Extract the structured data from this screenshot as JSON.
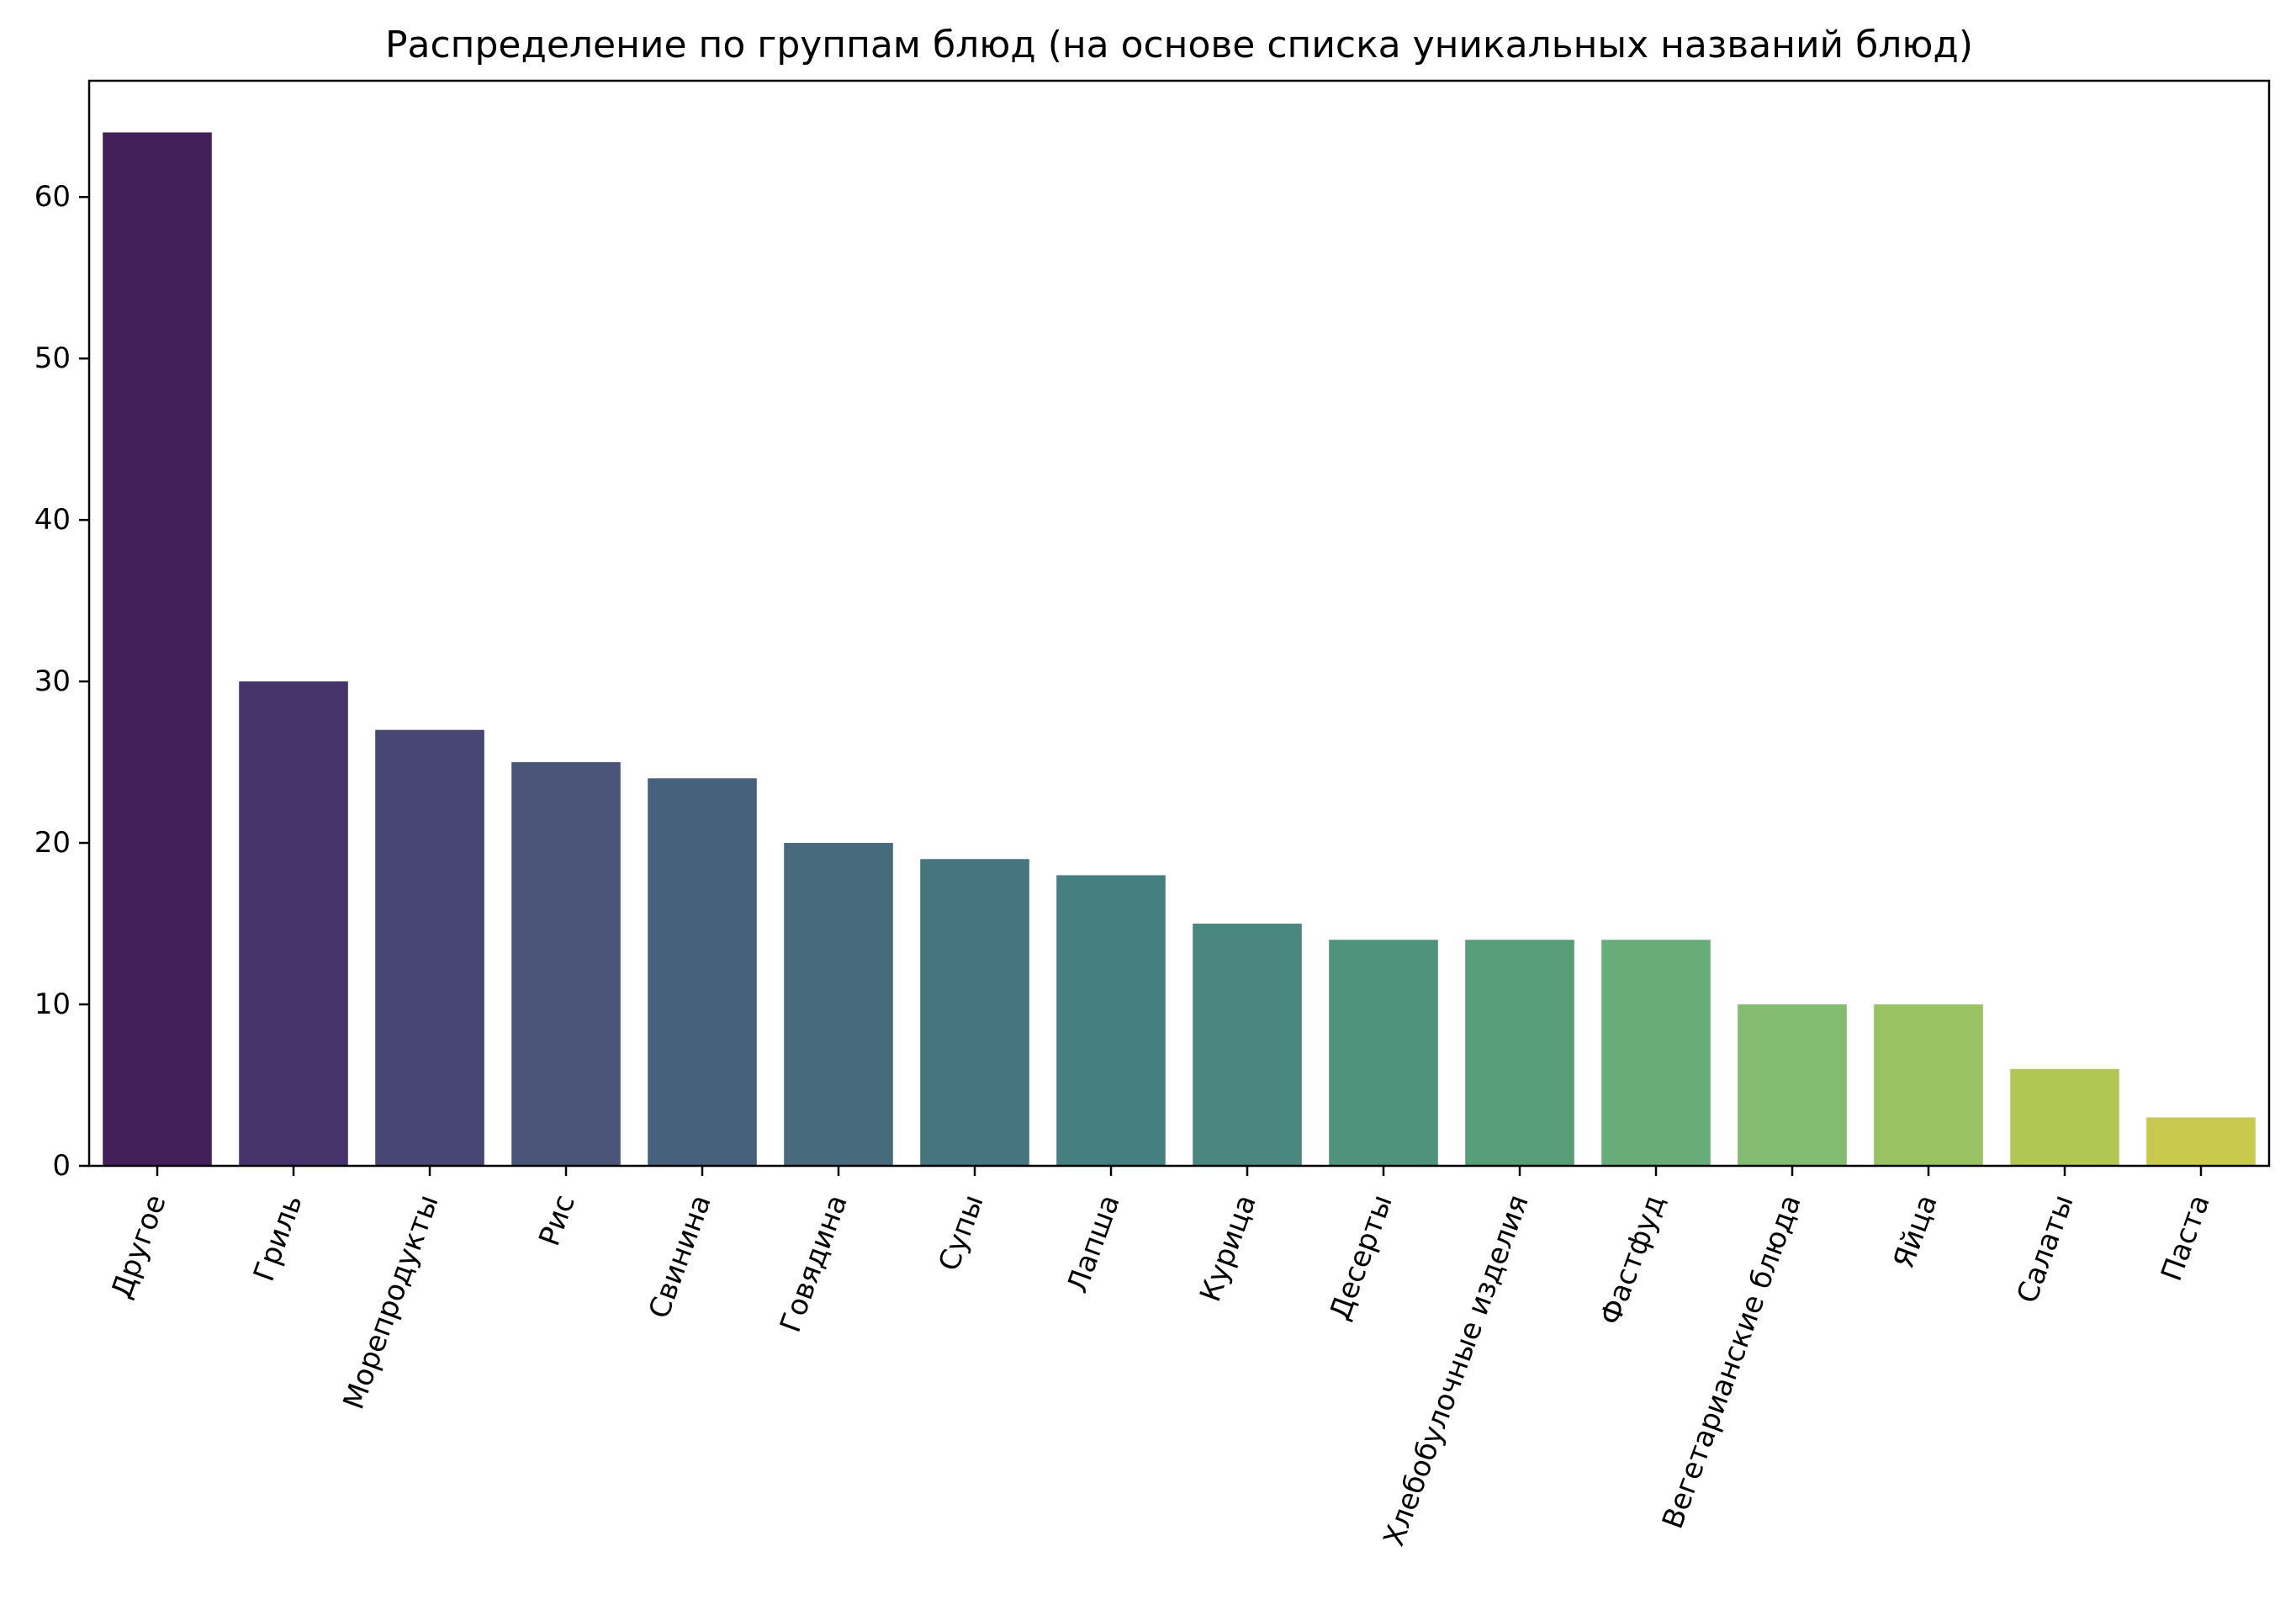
{
  "chart_data": {
    "type": "bar",
    "title": "Распределение по группам блюд (на основе списка уникальных названий блюд)",
    "xlabel": "",
    "ylabel": "",
    "categories": [
      "Другое",
      "Гриль",
      "Морепродукты",
      "Рис",
      "Свинина",
      "Говядина",
      "Супы",
      "Лапша",
      "Курица",
      "Десерты",
      "Хлебобулочные изделия",
      "Фастфуд",
      "Вегетарианские блюда",
      "Яйца",
      "Салаты",
      "Паста"
    ],
    "values": [
      64,
      30,
      27,
      25,
      24,
      20,
      19,
      18,
      15,
      14,
      14,
      14,
      10,
      10,
      6,
      3
    ],
    "colors": [
      "#43205a",
      "#46336c",
      "#484672",
      "#4a5579",
      "#46617b",
      "#476a7d",
      "#46757f",
      "#467f7f",
      "#4a887f",
      "#50937c",
      "#579d78",
      "#67ac79",
      "#83bb70",
      "#99c263",
      "#b2c655",
      "#c8c94e"
    ],
    "yticks": [
      0,
      10,
      20,
      30,
      40,
      50,
      60
    ],
    "ylim": [
      0,
      67.2
    ],
    "x_tick_rotation_deg": 70,
    "grid": false,
    "legend": "none"
  }
}
